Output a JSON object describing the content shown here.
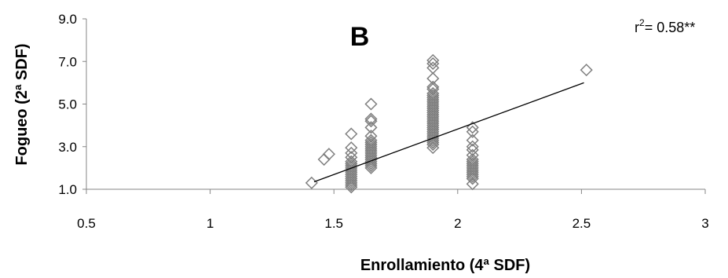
{
  "chart_data": {
    "type": "scatter",
    "panel_label": "B",
    "xlabel": "Enrollamiento (4ª SDF)",
    "ylabel": "Fogueo (2ª SDF)",
    "xlim": [
      0.5,
      3
    ],
    "ylim": [
      1.0,
      9.0
    ],
    "x_ticks": [
      0.5,
      1,
      1.5,
      2,
      2.5,
      3
    ],
    "x_tick_labels": [
      "0.5",
      "1",
      "1.5",
      "2",
      "2.5",
      "3"
    ],
    "y_ticks": [
      1.0,
      3.0,
      5.0,
      7.0,
      9.0
    ],
    "y_tick_labels": [
      "1.0",
      "3.0",
      "5.0",
      "7.0",
      "9.0"
    ],
    "annotation": {
      "prefix": "r",
      "superscript": "2",
      "text": "= 0.58**"
    },
    "marker": "diamond-open",
    "marker_color": "#7f7f7f",
    "trendline": {
      "x": [
        1.42,
        2.51
      ],
      "y": [
        1.35,
        6.0
      ],
      "color": "#000000"
    },
    "points": [
      {
        "x": 1.41,
        "y": 1.3
      },
      {
        "x": 1.46,
        "y": 2.4
      },
      {
        "x": 1.48,
        "y": 2.65
      },
      {
        "x": 1.57,
        "y": 1.1
      },
      {
        "x": 1.57,
        "y": 1.2
      },
      {
        "x": 1.57,
        "y": 1.3
      },
      {
        "x": 1.57,
        "y": 1.4
      },
      {
        "x": 1.57,
        "y": 1.5
      },
      {
        "x": 1.57,
        "y": 1.6
      },
      {
        "x": 1.57,
        "y": 1.7
      },
      {
        "x": 1.57,
        "y": 1.8
      },
      {
        "x": 1.57,
        "y": 1.9
      },
      {
        "x": 1.57,
        "y": 2.0
      },
      {
        "x": 1.57,
        "y": 2.1
      },
      {
        "x": 1.57,
        "y": 2.2
      },
      {
        "x": 1.57,
        "y": 2.3
      },
      {
        "x": 1.57,
        "y": 2.5
      },
      {
        "x": 1.57,
        "y": 2.7
      },
      {
        "x": 1.57,
        "y": 2.95
      },
      {
        "x": 1.57,
        "y": 3.6
      },
      {
        "x": 1.65,
        "y": 2.0
      },
      {
        "x": 1.65,
        "y": 2.1
      },
      {
        "x": 1.65,
        "y": 2.2
      },
      {
        "x": 1.65,
        "y": 2.3
      },
      {
        "x": 1.65,
        "y": 2.4
      },
      {
        "x": 1.65,
        "y": 2.5
      },
      {
        "x": 1.65,
        "y": 2.6
      },
      {
        "x": 1.65,
        "y": 2.7
      },
      {
        "x": 1.65,
        "y": 2.8
      },
      {
        "x": 1.65,
        "y": 2.9
      },
      {
        "x": 1.65,
        "y": 3.0
      },
      {
        "x": 1.65,
        "y": 3.1
      },
      {
        "x": 1.65,
        "y": 3.2
      },
      {
        "x": 1.65,
        "y": 3.3
      },
      {
        "x": 1.65,
        "y": 3.5
      },
      {
        "x": 1.65,
        "y": 3.9
      },
      {
        "x": 1.65,
        "y": 4.2
      },
      {
        "x": 1.65,
        "y": 4.3
      },
      {
        "x": 1.65,
        "y": 5.0
      },
      {
        "x": 1.9,
        "y": 2.95
      },
      {
        "x": 1.9,
        "y": 3.1
      },
      {
        "x": 1.9,
        "y": 3.2
      },
      {
        "x": 1.9,
        "y": 3.3
      },
      {
        "x": 1.9,
        "y": 3.4
      },
      {
        "x": 1.9,
        "y": 3.5
      },
      {
        "x": 1.9,
        "y": 3.6
      },
      {
        "x": 1.9,
        "y": 3.7
      },
      {
        "x": 1.9,
        "y": 3.8
      },
      {
        "x": 1.9,
        "y": 3.9
      },
      {
        "x": 1.9,
        "y": 4.0
      },
      {
        "x": 1.9,
        "y": 4.1
      },
      {
        "x": 1.9,
        "y": 4.2
      },
      {
        "x": 1.9,
        "y": 4.3
      },
      {
        "x": 1.9,
        "y": 4.4
      },
      {
        "x": 1.9,
        "y": 4.5
      },
      {
        "x": 1.9,
        "y": 4.6
      },
      {
        "x": 1.9,
        "y": 4.7
      },
      {
        "x": 1.9,
        "y": 4.8
      },
      {
        "x": 1.9,
        "y": 4.9
      },
      {
        "x": 1.9,
        "y": 5.0
      },
      {
        "x": 1.9,
        "y": 5.1
      },
      {
        "x": 1.9,
        "y": 5.2
      },
      {
        "x": 1.9,
        "y": 5.3
      },
      {
        "x": 1.9,
        "y": 5.4
      },
      {
        "x": 1.9,
        "y": 5.5
      },
      {
        "x": 1.9,
        "y": 5.7
      },
      {
        "x": 1.9,
        "y": 5.8
      },
      {
        "x": 1.9,
        "y": 6.2
      },
      {
        "x": 1.9,
        "y": 6.7
      },
      {
        "x": 1.9,
        "y": 6.9
      },
      {
        "x": 1.9,
        "y": 7.05
      },
      {
        "x": 2.06,
        "y": 1.25
      },
      {
        "x": 2.06,
        "y": 1.5
      },
      {
        "x": 2.06,
        "y": 1.6
      },
      {
        "x": 2.06,
        "y": 1.7
      },
      {
        "x": 2.06,
        "y": 1.8
      },
      {
        "x": 2.06,
        "y": 1.9
      },
      {
        "x": 2.06,
        "y": 2.0
      },
      {
        "x": 2.06,
        "y": 2.1
      },
      {
        "x": 2.06,
        "y": 2.2
      },
      {
        "x": 2.06,
        "y": 2.3
      },
      {
        "x": 2.06,
        "y": 2.4
      },
      {
        "x": 2.06,
        "y": 2.6
      },
      {
        "x": 2.06,
        "y": 2.85
      },
      {
        "x": 2.06,
        "y": 3.0
      },
      {
        "x": 2.06,
        "y": 3.3
      },
      {
        "x": 2.06,
        "y": 3.7
      },
      {
        "x": 2.06,
        "y": 3.9
      },
      {
        "x": 2.52,
        "y": 6.6
      }
    ]
  }
}
